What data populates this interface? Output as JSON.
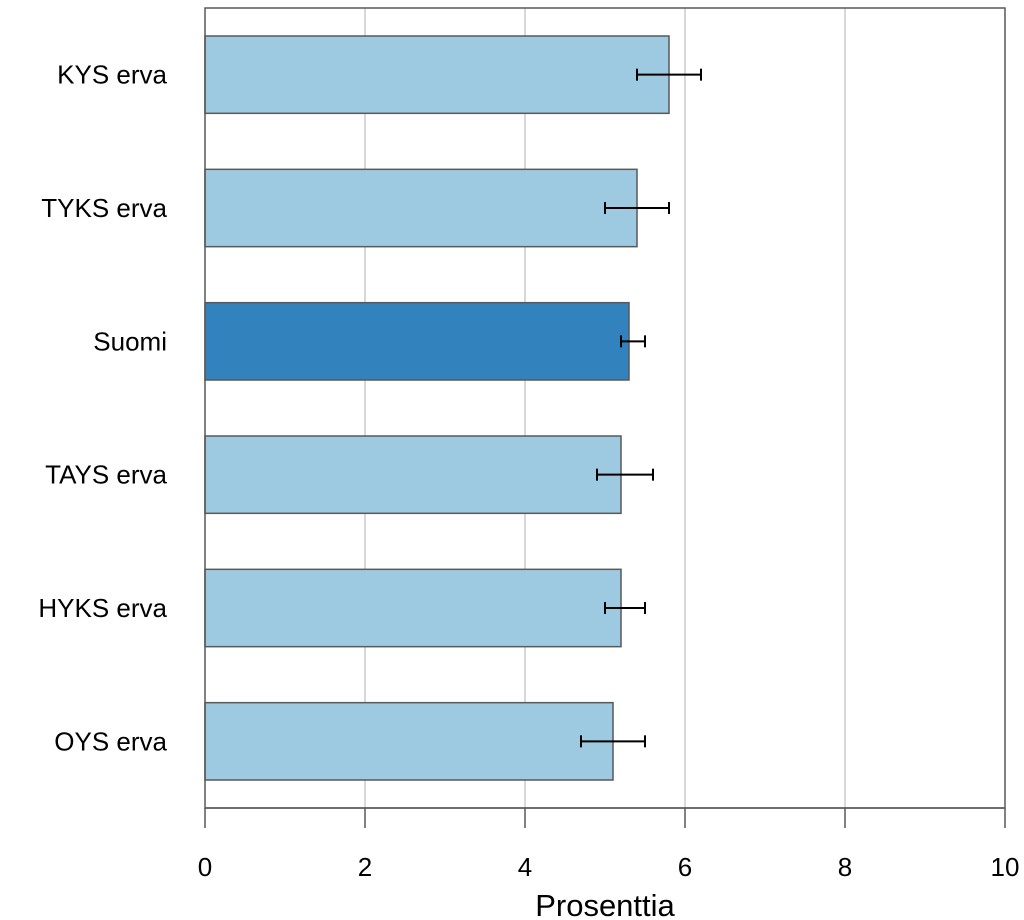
{
  "chart_data": {
    "type": "bar",
    "orientation": "horizontal",
    "categories": [
      "KYS erva",
      "TYKS erva",
      "Suomi",
      "TAYS erva",
      "HYKS erva",
      "OYS erva"
    ],
    "values": [
      5.8,
      5.4,
      5.3,
      5.2,
      5.2,
      5.1
    ],
    "error_low": [
      5.4,
      5.0,
      5.2,
      4.9,
      5.0,
      4.7
    ],
    "error_high": [
      6.2,
      5.8,
      5.5,
      5.6,
      5.5,
      5.5
    ],
    "highlight": "Suomi",
    "xlabel": "Prosenttia",
    "ylabel": "",
    "title": "",
    "xlim": [
      0,
      10
    ],
    "xticks": [
      0,
      2,
      4,
      6,
      8,
      10
    ],
    "grid": "vertical",
    "colors": {
      "bar": "#9ecae1",
      "highlight_bar": "#3182bd",
      "bar_edge": "#595959",
      "grid": "#cccccc",
      "axis": "#595959"
    }
  }
}
